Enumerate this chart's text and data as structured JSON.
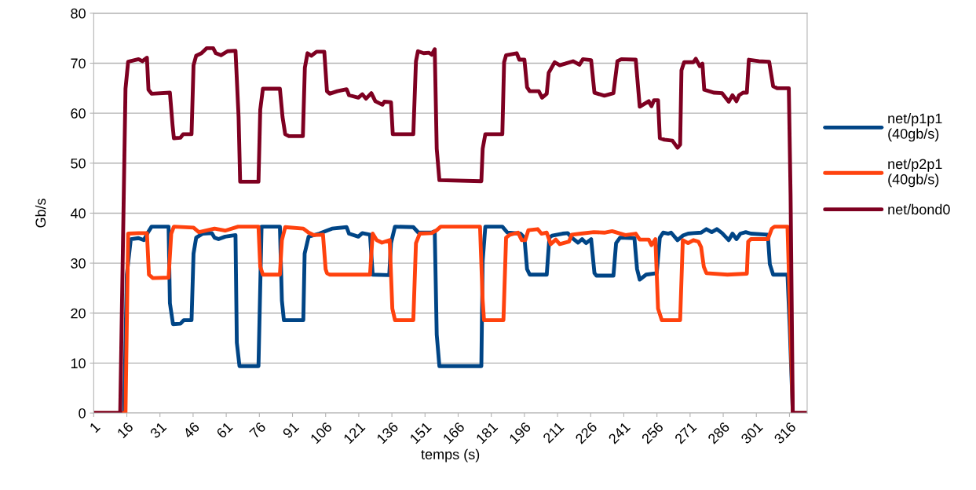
{
  "chart_data": {
    "type": "line",
    "xlabel": "temps (s)",
    "ylabel": "Gb/s",
    "xlim": [
      1,
      324
    ],
    "xticks": [
      1,
      16,
      31,
      46,
      61,
      76,
      91,
      106,
      121,
      136,
      151,
      166,
      181,
      196,
      211,
      226,
      241,
      256,
      271,
      286,
      301,
      316
    ],
    "ylim": [
      0,
      80
    ],
    "yticks": [
      0,
      10,
      20,
      30,
      40,
      50,
      60,
      70,
      80
    ],
    "grid": "y",
    "legend": "right",
    "series": [
      {
        "name": "net/p1p1\n(40gb/s)",
        "color": "#004586",
        "x": [
          1,
          14.8,
          16,
          17.8,
          21.3,
          23.7,
          25.5,
          27.2,
          34.9,
          35.5,
          36.9,
          40.3,
          41.8,
          45.3,
          46.2,
          47.4,
          50.4,
          54.5,
          55.7,
          57.5,
          60.5,
          65.2,
          65.8,
          67,
          75.6,
          77,
          85.3,
          86.2,
          87.1,
          95.9,
          96.5,
          98.3,
          103.1,
          107.2,
          108.9,
          115.5,
          116.6,
          120.8,
          122.6,
          126.1,
          127.3,
          134.8,
          135.6,
          137.4,
          145.7,
          148,
          154,
          155.4,
          156.3,
          157.5,
          176.5,
          177.1,
          178.3,
          186,
          188.3,
          194.2,
          196,
          197.2,
          198.4,
          206.1,
          207.3,
          208.5,
          213.2,
          215.6,
          217.4,
          220.3,
          222.1,
          223.9,
          226.2,
          227.7,
          228.6,
          236.3,
          237.5,
          239.3,
          245.8,
          247,
          248.2,
          251.1,
          255.9,
          257.3,
          258.8,
          261.2,
          262.4,
          265.3,
          267.7,
          270.1,
          272.5,
          276,
          278.4,
          280.8,
          283.1,
          285.5,
          288.5,
          290.2,
          292,
          293.8,
          296.2,
          298.5,
          306.2,
          307.1,
          308.6,
          315.1,
          316.1,
          317.5,
          324
        ],
        "values": [
          0,
          0,
          27.7,
          34.8,
          35.0,
          34.6,
          36.1,
          37.3,
          37.3,
          22.0,
          17.8,
          17.9,
          18.6,
          18.6,
          31.9,
          35.1,
          35.9,
          36.0,
          35.1,
          34.8,
          35.3,
          35.6,
          14.1,
          9.4,
          9.4,
          37.3,
          37.3,
          22.5,
          18.6,
          18.6,
          31.9,
          35.3,
          35.9,
          36.6,
          36.9,
          37.2,
          35.9,
          35.3,
          36.0,
          35.7,
          27.7,
          27.6,
          34.0,
          37.3,
          37.2,
          36.1,
          36.1,
          36.4,
          15.7,
          9.4,
          9.4,
          30.4,
          37.3,
          37.3,
          36.1,
          35.9,
          35.1,
          28.8,
          27.7,
          27.7,
          35.1,
          35.5,
          35.9,
          36.0,
          35.1,
          34.1,
          34.8,
          34.0,
          34.8,
          28.0,
          27.5,
          27.5,
          34.0,
          35.1,
          35.0,
          28.8,
          26.7,
          27.7,
          28.0,
          35.1,
          36.1,
          35.9,
          36.1,
          34.6,
          35.5,
          35.9,
          36.0,
          36.1,
          36.8,
          36.2,
          36.8,
          36.0,
          34.6,
          35.9,
          34.8,
          35.9,
          36.2,
          35.9,
          35.7,
          29.8,
          27.7,
          27.7,
          17.3,
          0,
          0
        ]
      },
      {
        "name": "net/p2p1\n(40gb/s)",
        "color": "#ff420e",
        "x": [
          1,
          15.4,
          16.6,
          21.3,
          25.1,
          26,
          27.8,
          34.9,
          36.1,
          37.3,
          46.2,
          48.6,
          55.7,
          60.5,
          66.4,
          75.6,
          76.4,
          77.6,
          85.3,
          86.2,
          87.7,
          95.9,
          98.3,
          100.7,
          104.8,
          106,
          106.6,
          107.8,
          116,
          126.1,
          127.3,
          129.1,
          131.5,
          135,
          136.2,
          137.4,
          145.7,
          146.9,
          148.6,
          154,
          156.3,
          158.1,
          175.9,
          177.1,
          177.7,
          186.5,
          187.7,
          189.5,
          193.1,
          194.8,
          196.4,
          197.8,
          202,
          203.7,
          206.1,
          207.9,
          210.2,
          212,
          216.2,
          217.4,
          221.5,
          227.4,
          232.2,
          235.7,
          241.7,
          246.4,
          248.2,
          252.3,
          253.5,
          255.3,
          256.5,
          258.2,
          266.5,
          267.7,
          270.1,
          272.5,
          274.8,
          276,
          277.2,
          278.4,
          287.9,
          296.7,
          297.3,
          298.5,
          306.2,
          308,
          309.2,
          315.1,
          316.1,
          317.5,
          324
        ],
        "values": [
          0,
          0,
          35.9,
          36.0,
          36.0,
          27.7,
          27.0,
          27.1,
          35.9,
          37.3,
          37.1,
          36.2,
          36.9,
          36.5,
          37.3,
          37.3,
          29.3,
          27.7,
          27.7,
          34.6,
          37.2,
          36.9,
          36.1,
          35.6,
          35.7,
          28.8,
          28.0,
          27.7,
          27.7,
          27.7,
          35.9,
          34.6,
          34.1,
          34.6,
          20.9,
          18.6,
          18.6,
          34.0,
          35.9,
          36.0,
          36.6,
          37.3,
          37.3,
          22.5,
          18.6,
          18.6,
          35.1,
          35.7,
          36.1,
          34.6,
          34.6,
          36.6,
          36.8,
          35.9,
          36.1,
          33.8,
          34.7,
          33.8,
          34.3,
          35.7,
          35.9,
          36.2,
          36.1,
          36.4,
          35.6,
          35.9,
          34.7,
          34.7,
          33.6,
          34.8,
          20.9,
          18.6,
          18.6,
          34.6,
          34.0,
          34.6,
          34.3,
          33.2,
          29.3,
          28.0,
          27.7,
          27.9,
          34.3,
          34.8,
          34.8,
          36.9,
          37.3,
          37.3,
          22.5,
          0,
          0
        ]
      },
      {
        "name": "net/bond0",
        "color": "#7e0021",
        "x": [
          1,
          13,
          15.4,
          16.6,
          21.3,
          23,
          25.1,
          25.8,
          27.2,
          35.5,
          36.7,
          37.3,
          40.3,
          41.5,
          45.3,
          46.2,
          47.4,
          49.8,
          52.1,
          55.1,
          56.3,
          58.6,
          61.6,
          65.2,
          66.6,
          67.3,
          75.6,
          76.4,
          77.6,
          85.3,
          86.5,
          87.7,
          89.4,
          95.7,
          96.6,
          97.8,
          99.5,
          101.9,
          105.4,
          106.6,
          107.8,
          111.3,
          115.5,
          116.6,
          120.8,
          122.6,
          124.3,
          126.7,
          128.5,
          131.7,
          132.6,
          135.6,
          136.4,
          145.7,
          146.9,
          147.8,
          150.4,
          152.8,
          154,
          155.4,
          156.3,
          157.5,
          176.5,
          177.1,
          178.3,
          186,
          186.8,
          187.7,
          192.5,
          193.7,
          196,
          197.2,
          198.4,
          202.5,
          204,
          206.1,
          207,
          209.7,
          212,
          214.4,
          218,
          220.9,
          222.5,
          226.2,
          227.7,
          232.2,
          236.3,
          238.1,
          239.9,
          246.4,
          248.2,
          252.3,
          253.5,
          254.7,
          256.5,
          257.3,
          259.4,
          263,
          265.3,
          266.5,
          267.1,
          268.3,
          272.5,
          273.6,
          275.4,
          276.6,
          277.4,
          281.9,
          285.5,
          288.5,
          290.2,
          292,
          293.2,
          295,
          296.7,
          297.6,
          302.1,
          306.8,
          308.6,
          310.4,
          315.7,
          316.5,
          317.5,
          324
        ],
        "values": [
          0,
          0,
          64.9,
          70.3,
          70.8,
          70.4,
          71.1,
          64.7,
          63.9,
          64.1,
          57.6,
          55.0,
          55.1,
          55.8,
          55.8,
          69.6,
          71.5,
          72.0,
          73.0,
          73.0,
          72.0,
          71.6,
          72.4,
          72.5,
          59.2,
          46.3,
          46.3,
          60.7,
          64.9,
          64.9,
          59.2,
          55.8,
          55.4,
          55.4,
          69.1,
          72.0,
          71.5,
          72.3,
          72.3,
          64.4,
          63.9,
          64.4,
          64.8,
          63.6,
          63.1,
          63.8,
          62.9,
          64.0,
          62.4,
          61.7,
          62.3,
          62.2,
          55.8,
          55.8,
          70.4,
          72.4,
          72.0,
          72.1,
          71.7,
          72.8,
          52.9,
          46.6,
          46.4,
          52.9,
          55.8,
          55.8,
          70.2,
          71.6,
          72.0,
          70.7,
          70.7,
          65.2,
          64.4,
          64.4,
          63.1,
          63.9,
          68.1,
          70.2,
          69.6,
          69.9,
          70.4,
          69.7,
          70.8,
          70.6,
          64.1,
          63.5,
          64.0,
          70.4,
          70.8,
          70.7,
          61.3,
          62.4,
          61.4,
          62.6,
          62.6,
          55.0,
          54.7,
          54.5,
          53.1,
          53.7,
          68.6,
          70.2,
          70.2,
          70.9,
          69.4,
          69.9,
          64.7,
          64.1,
          64.0,
          62.3,
          63.6,
          62.4,
          63.6,
          64.1,
          64.1,
          70.7,
          70.4,
          70.3,
          65.4,
          65.0,
          65.0,
          43.5,
          0,
          0
        ]
      }
    ]
  }
}
